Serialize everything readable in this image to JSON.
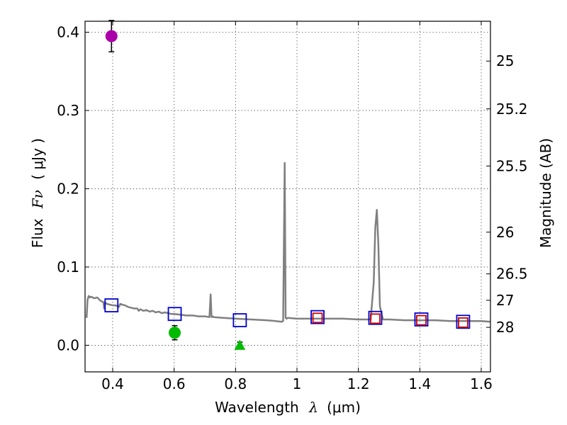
{
  "chart_data": {
    "type": "scatter",
    "title": "",
    "xlabel_prefix": "Wavelength",
    "xlabel_symbol": "λ",
    "xlabel_units": "(μm)",
    "ylabel_prefix": "Flux",
    "ylabel_symbol": "Fν",
    "ylabel_units": "( μJy )",
    "y2label": "Magnitude (AB)",
    "xlim": [
      0.31,
      1.63
    ],
    "ylim": [
      -0.034,
      0.414
    ],
    "x_ticks": [
      0.4,
      0.6,
      0.8,
      1.0,
      1.2,
      1.4,
      1.6
    ],
    "x_tick_labels": [
      "0.4",
      "0.6",
      "0.8",
      "1",
      "1.2",
      "1.4",
      "1.6"
    ],
    "y_ticks": [
      0.0,
      0.1,
      0.2,
      0.3,
      0.4
    ],
    "y_tick_labels": [
      "0.0",
      "0.1",
      "0.2",
      "0.3",
      "0.4"
    ],
    "y2_ticks": [
      {
        "label": "25",
        "flux": 0.3631
      },
      {
        "label": "25.2",
        "flux": 0.302
      },
      {
        "label": "25.5",
        "flux": 0.2291
      },
      {
        "label": "26",
        "flux": 0.1445
      },
      {
        "label": "26.5",
        "flux": 0.0912
      },
      {
        "label": "27",
        "flux": 0.0575
      },
      {
        "label": "28",
        "flux": 0.0229
      }
    ],
    "grid": true,
    "series": [
      {
        "name": "model spectrum",
        "kind": "line",
        "color": "#808080",
        "x": [
          0.315,
          0.318,
          0.322,
          0.326,
          0.33,
          0.34,
          0.35,
          0.36,
          0.37,
          0.372,
          0.375,
          0.38,
          0.39,
          0.4,
          0.41,
          0.42,
          0.425,
          0.43,
          0.44,
          0.45,
          0.46,
          0.47,
          0.48,
          0.485,
          0.49,
          0.5,
          0.51,
          0.52,
          0.53,
          0.54,
          0.55,
          0.56,
          0.57,
          0.58,
          0.59,
          0.6,
          0.62,
          0.64,
          0.66,
          0.68,
          0.7,
          0.715,
          0.719,
          0.722,
          0.725,
          0.73,
          0.76,
          0.8,
          0.85,
          0.9,
          0.93,
          0.95,
          0.955,
          0.96,
          0.963,
          0.966,
          0.97,
          1.0,
          1.05,
          1.1,
          1.15,
          1.2,
          1.24,
          1.25,
          1.255,
          1.26,
          1.265,
          1.27,
          1.28,
          1.3,
          1.35,
          1.4,
          1.45,
          1.5,
          1.55,
          1.6,
          1.63
        ],
        "y": [
          0.035,
          0.058,
          0.063,
          0.061,
          0.062,
          0.06,
          0.061,
          0.057,
          0.055,
          0.047,
          0.055,
          0.053,
          0.052,
          0.051,
          0.051,
          0.049,
          0.053,
          0.052,
          0.051,
          0.049,
          0.048,
          0.047,
          0.047,
          0.044,
          0.046,
          0.044,
          0.045,
          0.043,
          0.044,
          0.042,
          0.043,
          0.041,
          0.042,
          0.041,
          0.04,
          0.04,
          0.039,
          0.038,
          0.038,
          0.037,
          0.037,
          0.036,
          0.065,
          0.036,
          0.037,
          0.036,
          0.035,
          0.034,
          0.033,
          0.032,
          0.031,
          0.03,
          0.031,
          0.233,
          0.035,
          0.034,
          0.035,
          0.034,
          0.034,
          0.034,
          0.034,
          0.033,
          0.033,
          0.08,
          0.15,
          0.173,
          0.13,
          0.05,
          0.033,
          0.033,
          0.032,
          0.032,
          0.032,
          0.031,
          0.031,
          0.031,
          0.03
        ]
      },
      {
        "name": "model photometry",
        "kind": "marker",
        "marker": "square",
        "color": "#0000cc",
        "x": [
          0.396,
          0.602,
          0.814,
          1.067,
          1.255,
          1.405,
          1.541
        ],
        "y": [
          0.051,
          0.04,
          0.032,
          0.036,
          0.035,
          0.033,
          0.03
        ]
      },
      {
        "name": "observed photometry (red)",
        "kind": "marker",
        "marker": "square",
        "color": "#cc0000",
        "x": [
          1.067,
          1.255,
          1.405,
          1.541
        ],
        "y": [
          0.035,
          0.034,
          0.032,
          0.029
        ]
      },
      {
        "name": "observed magenta point",
        "kind": "marker",
        "marker": "circle",
        "color": "#aa00aa",
        "x": [
          0.396
        ],
        "y": [
          0.395
        ],
        "yerr": [
          0.02
        ]
      },
      {
        "name": "observed green point",
        "kind": "marker",
        "marker": "circle",
        "color": "#00bb00",
        "x": [
          0.602
        ],
        "y": [
          0.016
        ],
        "yerr": [
          0.009
        ]
      },
      {
        "name": "observed green upper-limit",
        "kind": "marker",
        "marker": "triangle",
        "color": "#00bb00",
        "x": [
          0.814
        ],
        "y": [
          0.0
        ],
        "yerr": [
          0.004
        ]
      }
    ]
  }
}
